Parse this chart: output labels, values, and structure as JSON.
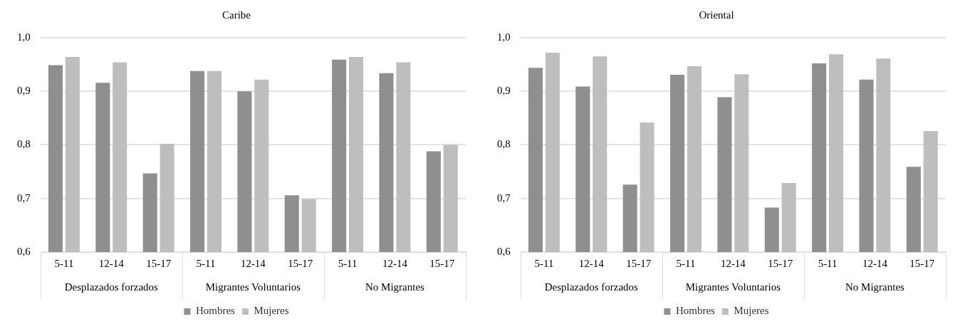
{
  "chart_data": [
    {
      "type": "bar",
      "title": "Caribe",
      "categories": [
        "5-11",
        "12-14",
        "15-17",
        "5-11",
        "12-14",
        "15-17",
        "5-11",
        "12-14",
        "15-17"
      ],
      "annotations": [
        "Desplazados forzados",
        "Migrantes Voluntarios",
        "No Migrantes"
      ],
      "series": [
        {
          "name": "Hombres",
          "color": "#8f8f8f",
          "values": [
            0.949,
            0.916,
            0.747,
            0.938,
            0.9,
            0.706,
            0.959,
            0.934,
            0.788
          ]
        },
        {
          "name": "Mujeres",
          "color": "#bebebe",
          "values": [
            0.964,
            0.954,
            0.802,
            0.938,
            0.922,
            0.699,
            0.964,
            0.954,
            0.8
          ]
        }
      ],
      "ylim": [
        0.6,
        1.0
      ],
      "yticks": [
        {
          "value": 0.6,
          "label": "0,6"
        },
        {
          "value": 0.7,
          "label": "0,7"
        },
        {
          "value": 0.8,
          "label": "0,8"
        },
        {
          "value": 0.9,
          "label": "0,9"
        },
        {
          "value": 1.0,
          "label": "1,0"
        }
      ],
      "grid": "y",
      "legend": "bottom"
    },
    {
      "type": "bar",
      "title": "Oriental",
      "categories": [
        "5-11",
        "12-14",
        "15-17",
        "5-11",
        "12-14",
        "15-17",
        "5-11",
        "12-14",
        "15-17"
      ],
      "annotations": [
        "Desplazados forzados",
        "Migrantes Voluntarios",
        "No Migrantes"
      ],
      "series": [
        {
          "name": "Hombres",
          "color": "#8f8f8f",
          "values": [
            0.944,
            0.909,
            0.726,
            0.931,
            0.889,
            0.683,
            0.952,
            0.922,
            0.759
          ]
        },
        {
          "name": "Mujeres",
          "color": "#bebebe",
          "values": [
            0.972,
            0.965,
            0.842,
            0.947,
            0.932,
            0.729,
            0.969,
            0.961,
            0.826
          ]
        }
      ],
      "ylim": [
        0.6,
        1.0
      ],
      "yticks": [
        {
          "value": 0.6,
          "label": "0,6"
        },
        {
          "value": 0.7,
          "label": "0,7"
        },
        {
          "value": 0.8,
          "label": "0,8"
        },
        {
          "value": 0.9,
          "label": "0,9"
        },
        {
          "value": 1.0,
          "label": "1,0"
        }
      ],
      "grid": "y",
      "legend": "bottom"
    }
  ]
}
